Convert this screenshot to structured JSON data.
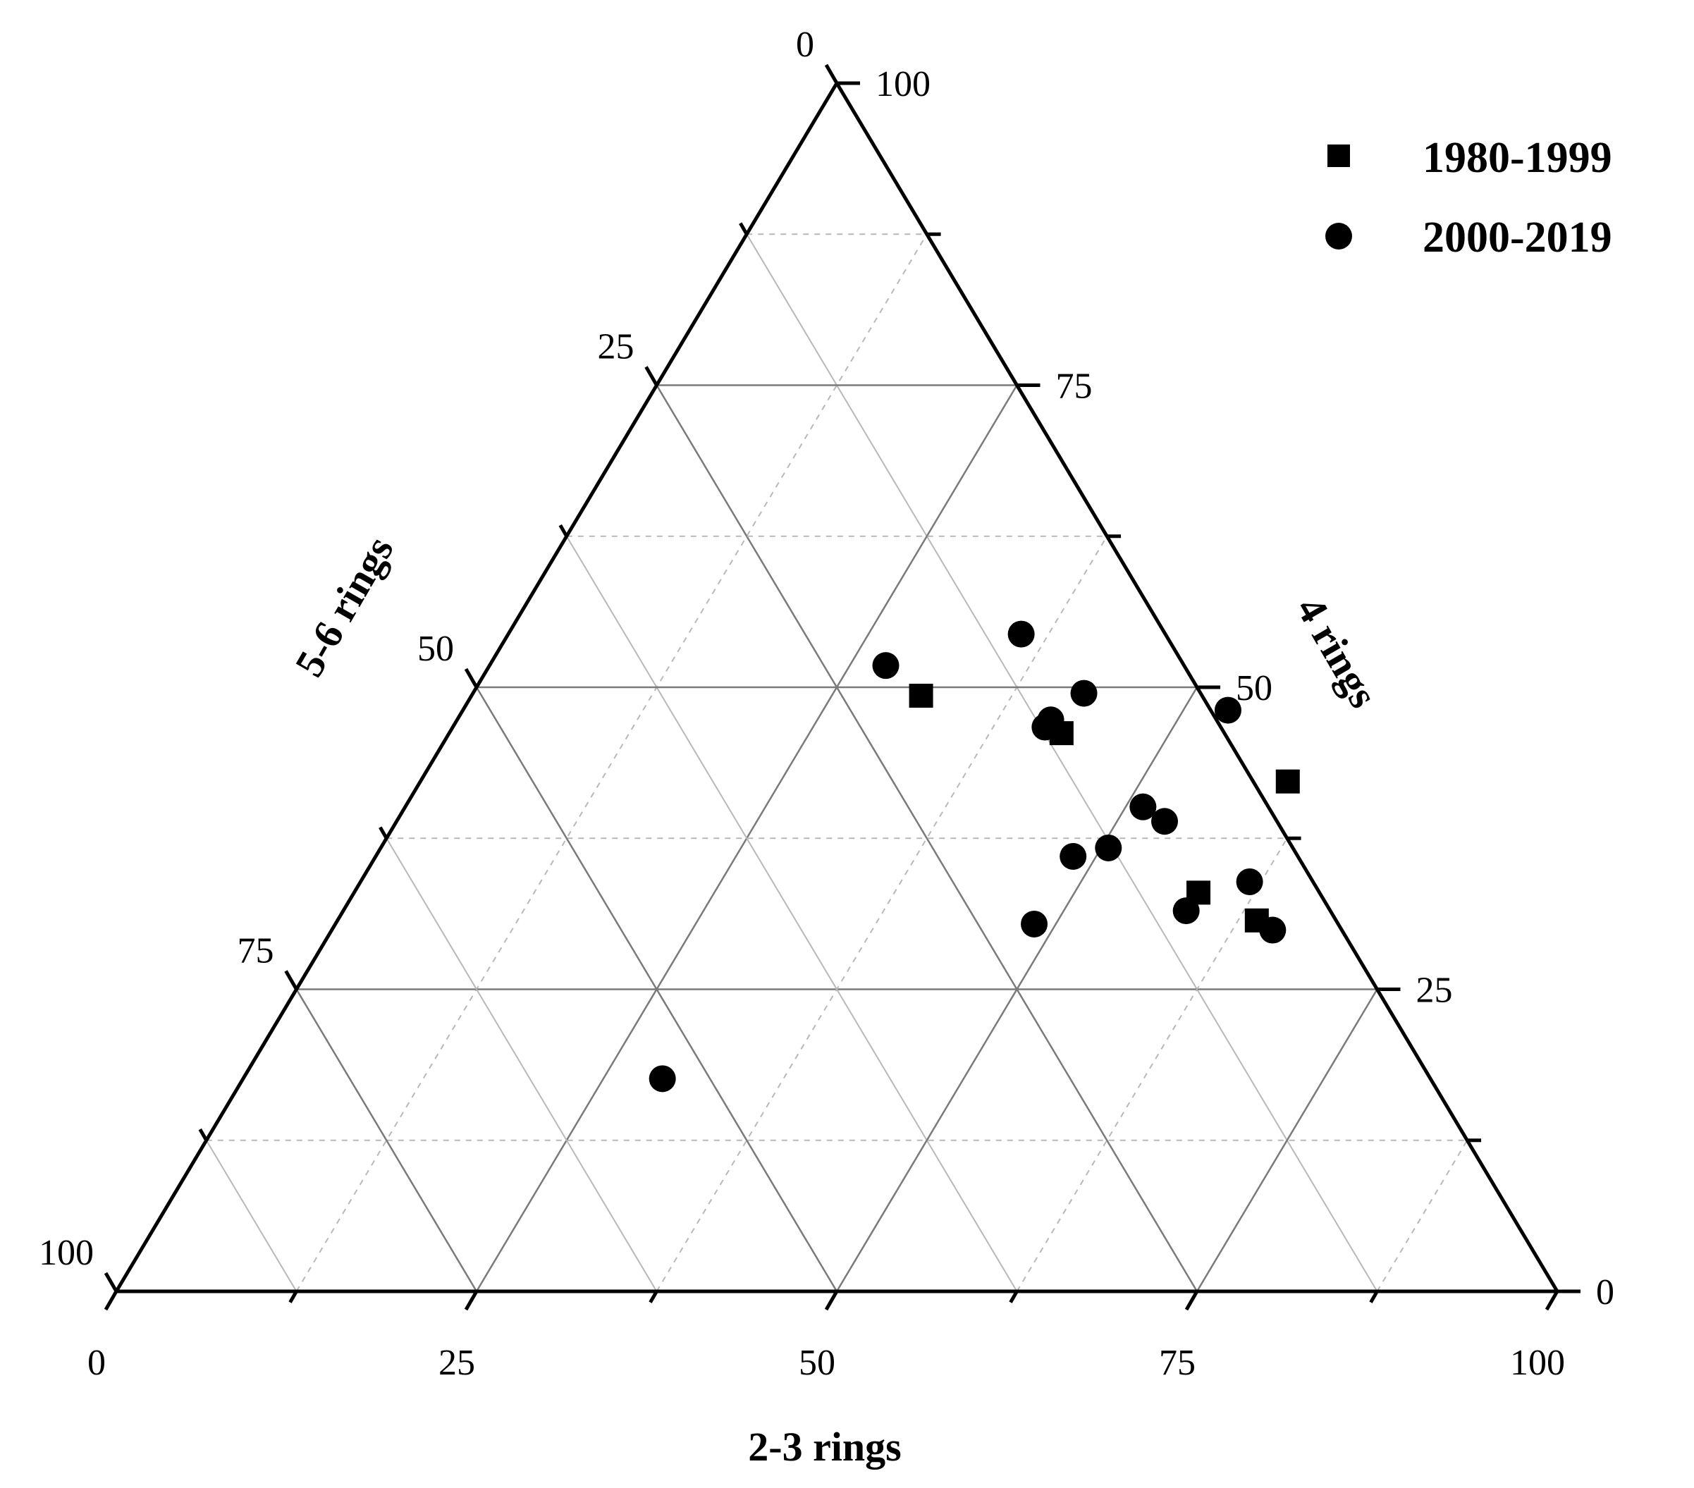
{
  "chart_data": {
    "type": "scatter",
    "subtype": "ternary",
    "axes": {
      "bottom": {
        "label": "2-3 rings",
        "ticks": [
          "0",
          "25",
          "50",
          "75",
          "100"
        ]
      },
      "left": {
        "label": "5-6 rings",
        "ticks": [
          "0",
          "25",
          "50",
          "75",
          "100"
        ]
      },
      "right": {
        "label": "4 rings",
        "ticks": [
          "0",
          "25",
          "50",
          "75",
          "100"
        ]
      }
    },
    "grid": true,
    "legend_position": "top-right",
    "series": [
      {
        "name": "1980-1999",
        "marker": "square",
        "color": "#000000",
        "points": [
          {
            "two_three_rings": 31.2,
            "four_rings": 49.3,
            "five_six_rings": 19.5
          },
          {
            "two_three_rings": 42.5,
            "four_rings": 46.2,
            "five_six_rings": 11.3
          },
          {
            "two_three_rings": 60.2,
            "four_rings": 42.2,
            "five_six_rings": -2.4
          },
          {
            "two_three_rings": 58.6,
            "four_rings": 33.0,
            "five_six_rings": 8.4
          },
          {
            "two_three_rings": 63.8,
            "four_rings": 30.7,
            "five_six_rings": 5.5
          }
        ]
      },
      {
        "name": "2000-2019",
        "marker": "circle",
        "color": "#000000",
        "points": [
          {
            "two_three_rings": 35.6,
            "four_rings": 54.4,
            "five_six_rings": 10.0
          },
          {
            "two_three_rings": 27.5,
            "four_rings": 51.8,
            "five_six_rings": 20.7
          },
          {
            "two_three_rings": 42.4,
            "four_rings": 49.5,
            "five_six_rings": 8.1
          },
          {
            "two_three_rings": 41.2,
            "four_rings": 47.3,
            "five_six_rings": 11.5
          },
          {
            "two_three_rings": 41.1,
            "four_rings": 46.7,
            "five_six_rings": 12.2
          },
          {
            "two_three_rings": 53.1,
            "four_rings": 48.1,
            "five_six_rings": -1.2
          },
          {
            "two_three_rings": 48.4,
            "four_rings": 36.0,
            "five_six_rings": 15.6
          },
          {
            "two_three_rings": 51.2,
            "four_rings": 40.1,
            "five_six_rings": 8.7
          },
          {
            "two_three_rings": 53.3,
            "four_rings": 38.9,
            "five_six_rings": 7.8
          },
          {
            "two_three_rings": 50.5,
            "four_rings": 36.7,
            "five_six_rings": 12.8
          },
          {
            "two_three_rings": 48.5,
            "four_rings": 30.4,
            "five_six_rings": 21.1
          },
          {
            "two_three_rings": 58.5,
            "four_rings": 31.5,
            "five_six_rings": 10.0
          },
          {
            "two_three_rings": 61.7,
            "four_rings": 33.9,
            "five_six_rings": 4.4
          },
          {
            "two_three_rings": 65.3,
            "four_rings": 29.9,
            "five_six_rings": 4.8
          },
          {
            "two_three_rings": 29.1,
            "four_rings": 17.6,
            "five_six_rings": 53.3
          }
        ]
      }
    ]
  }
}
